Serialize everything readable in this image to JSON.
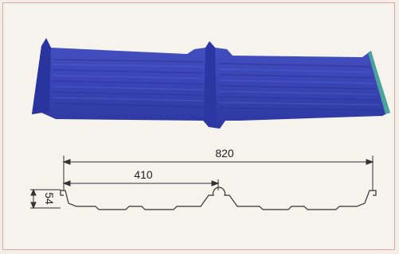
{
  "dimensions": {
    "total_width": "820",
    "half_width": "410",
    "height": "54"
  },
  "colors": {
    "sheet": "#3b47b8",
    "sheet_dark": "#1f2a8a",
    "sheet_light": "#5662cc",
    "edge_teal": "#4aa39a",
    "line": "#333333",
    "border": "#d9a9a0"
  }
}
